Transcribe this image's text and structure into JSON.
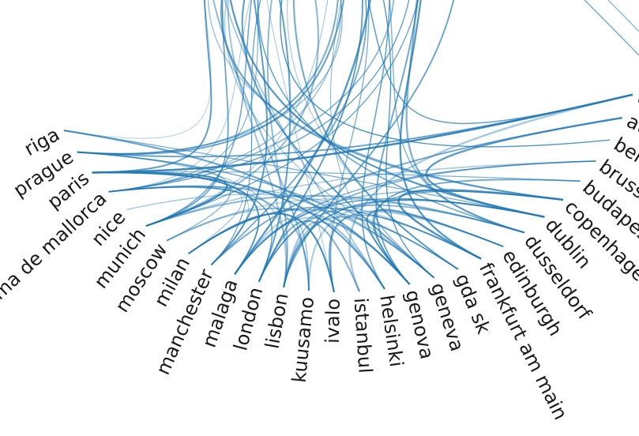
{
  "nodes": [
    {
      "label": "amsterdam"
    },
    {
      "label": "athens"
    },
    {
      "label": "berlin"
    },
    {
      "label": "brussels"
    },
    {
      "label": "budapest"
    },
    {
      "label": "copenhagen"
    },
    {
      "label": "dublin"
    },
    {
      "label": "dusseldorf"
    },
    {
      "label": "edinburgh"
    },
    {
      "label": "frankfurt am main"
    },
    {
      "label": "gda sk"
    },
    {
      "label": "geneva"
    },
    {
      "label": "genova"
    },
    {
      "label": "helsinki"
    },
    {
      "label": "istanbul"
    },
    {
      "label": "ivalo"
    },
    {
      "label": "kuusamo"
    },
    {
      "label": "lisbon"
    },
    {
      "label": "london"
    },
    {
      "label": "malaga"
    },
    {
      "label": "manchester"
    },
    {
      "label": "milan"
    },
    {
      "label": "moscow"
    },
    {
      "label": "munich"
    },
    {
      "label": "nice"
    },
    {
      "label": "palma de mallorca"
    },
    {
      "label": "paris"
    },
    {
      "label": "prague"
    },
    {
      "label": "riga"
    }
  ]
}
